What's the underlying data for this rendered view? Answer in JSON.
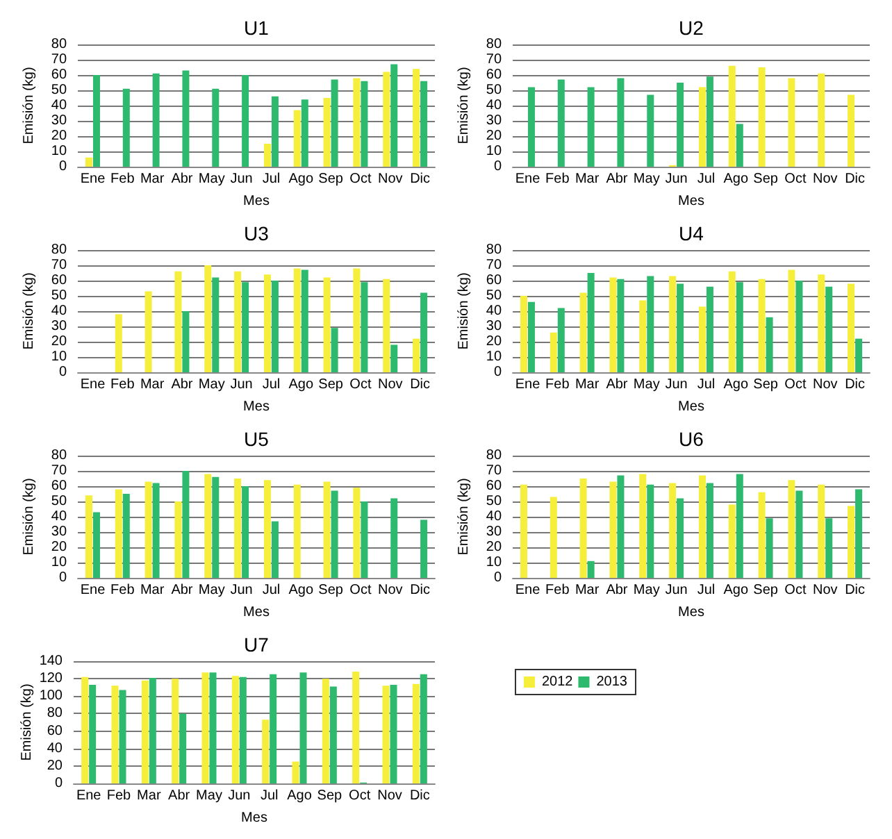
{
  "chart_data": [
    {
      "type": "bar",
      "title": "U1",
      "xlabel": "Mes",
      "ylabel": "Emisión (kg)",
      "categories": [
        "Ene",
        "Feb",
        "Mar",
        "Abr",
        "May",
        "Jun",
        "Jul",
        "Ago",
        "Sep",
        "Oct",
        "Nov",
        "Dic"
      ],
      "ylim": [
        0,
        80
      ],
      "yticks": [
        0,
        10,
        20,
        30,
        40,
        50,
        60,
        70,
        80
      ],
      "grid": "y",
      "legend": false,
      "series": [
        {
          "color": "#f5ee3a",
          "values": [
            6,
            null,
            null,
            null,
            null,
            null,
            15,
            37,
            45,
            58,
            62,
            64
          ]
        },
        {
          "color": "#2dba6e",
          "values": [
            60,
            51,
            61,
            63,
            51,
            60,
            46,
            44,
            57,
            56,
            67,
            56
          ]
        }
      ]
    },
    {
      "type": "bar",
      "title": "U2",
      "xlabel": "Mes",
      "ylabel": "Emisión (kg)",
      "categories": [
        "Ene",
        "Feb",
        "Mar",
        "Abr",
        "May",
        "Jun",
        "Jul",
        "Ago",
        "Sep",
        "Oct",
        "Nov",
        "Dic"
      ],
      "ylim": [
        0,
        80
      ],
      "yticks": [
        0,
        10,
        20,
        30,
        40,
        50,
        60,
        70,
        80
      ],
      "grid": "y",
      "legend": false,
      "series": [
        {
          "color": "#f5ee3a",
          "values": [
            null,
            null,
            null,
            null,
            null,
            1,
            52,
            66,
            65,
            58,
            61,
            47
          ]
        },
        {
          "color": "#2dba6e",
          "values": [
            52,
            57,
            52,
            58,
            47,
            55,
            59,
            28,
            null,
            null,
            null,
            null
          ]
        }
      ]
    },
    {
      "type": "bar",
      "title": "U3",
      "xlabel": "Mes",
      "ylabel": "Emisión (kg)",
      "categories": [
        "Ene",
        "Feb",
        "Mar",
        "Abr",
        "May",
        "Jun",
        "Jul",
        "Ago",
        "Sep",
        "Oct",
        "Nov",
        "Dic"
      ],
      "ylim": [
        0,
        80
      ],
      "yticks": [
        0,
        10,
        20,
        30,
        40,
        50,
        60,
        70,
        80
      ],
      "grid": "y",
      "legend": false,
      "series": [
        {
          "color": "#f5ee3a",
          "values": [
            null,
            38,
            53,
            66,
            70,
            66,
            64,
            68,
            62,
            68,
            61,
            22
          ]
        },
        {
          "color": "#2dba6e",
          "values": [
            null,
            null,
            null,
            40,
            62,
            59,
            60,
            67,
            29,
            59,
            18,
            52
          ]
        }
      ]
    },
    {
      "type": "bar",
      "title": "U4",
      "xlabel": "Mes",
      "ylabel": "Emisión (kg)",
      "categories": [
        "Ene",
        "Feb",
        "Mar",
        "Abr",
        "May",
        "Jun",
        "Jul",
        "Ago",
        "Sep",
        "Oct",
        "Nov",
        "Dic"
      ],
      "ylim": [
        0,
        80
      ],
      "yticks": [
        0,
        10,
        20,
        30,
        40,
        50,
        60,
        70,
        80
      ],
      "grid": "y",
      "legend": false,
      "series": [
        {
          "color": "#f5ee3a",
          "values": [
            50,
            26,
            52,
            62,
            47,
            63,
            43,
            66,
            61,
            67,
            64,
            58
          ]
        },
        {
          "color": "#2dba6e",
          "values": [
            46,
            42,
            65,
            61,
            63,
            58,
            56,
            59,
            36,
            60,
            56,
            22
          ]
        }
      ]
    },
    {
      "type": "bar",
      "title": "U5",
      "xlabel": "Mes",
      "ylabel": "Emisión (kg)",
      "categories": [
        "Ene",
        "Feb",
        "Mar",
        "Abr",
        "May",
        "Jun",
        "Jul",
        "Ago",
        "Sep",
        "Oct",
        "Nov",
        "Dic"
      ],
      "ylim": [
        0,
        80
      ],
      "yticks": [
        0,
        10,
        20,
        30,
        40,
        50,
        60,
        70,
        80
      ],
      "grid": "y",
      "legend": false,
      "series": [
        {
          "color": "#f5ee3a",
          "values": [
            54,
            58,
            63,
            50,
            68,
            65,
            64,
            61,
            63,
            59,
            null,
            null
          ]
        },
        {
          "color": "#2dba6e",
          "values": [
            43,
            55,
            62,
            70,
            66,
            60,
            37,
            null,
            57,
            50,
            52,
            38
          ]
        }
      ]
    },
    {
      "type": "bar",
      "title": "U6",
      "xlabel": "Mes",
      "ylabel": "Emisión (kg)",
      "categories": [
        "Ene",
        "Feb",
        "Mar",
        "Abr",
        "May",
        "Jun",
        "Jul",
        "Ago",
        "Sep",
        "Oct",
        "Nov",
        "Dic"
      ],
      "ylim": [
        0,
        80
      ],
      "yticks": [
        0,
        10,
        20,
        30,
        40,
        50,
        60,
        70,
        80
      ],
      "grid": "y",
      "legend": false,
      "series": [
        {
          "color": "#f5ee3a",
          "values": [
            61,
            53,
            65,
            63,
            68,
            62,
            67,
            48,
            56,
            64,
            61,
            47
          ]
        },
        {
          "color": "#2dba6e",
          "values": [
            null,
            null,
            11,
            67,
            61,
            52,
            62,
            68,
            39,
            57,
            39,
            58
          ]
        }
      ]
    },
    {
      "type": "bar",
      "title": "U7",
      "xlabel": "Mes",
      "ylabel": "Emisión (kg)",
      "categories": [
        "Ene",
        "Feb",
        "Mar",
        "Abr",
        "May",
        "Jun",
        "Jul",
        "Ago",
        "Sep",
        "Oct",
        "Nov",
        "Dic"
      ],
      "ylim": [
        0,
        140
      ],
      "yticks": [
        0,
        20,
        40,
        60,
        80,
        100,
        120,
        140
      ],
      "grid": "y",
      "legend": "right",
      "series": [
        {
          "name": "2012",
          "color": "#f5ee3a",
          "values": [
            122,
            112,
            118,
            120,
            127,
            123,
            73,
            25,
            120,
            128,
            112,
            114
          ]
        },
        {
          "name": "2013",
          "color": "#2dba6e",
          "values": [
            113,
            107,
            121,
            80,
            127,
            122,
            125,
            127,
            111,
            1,
            113,
            125
          ]
        }
      ]
    }
  ]
}
